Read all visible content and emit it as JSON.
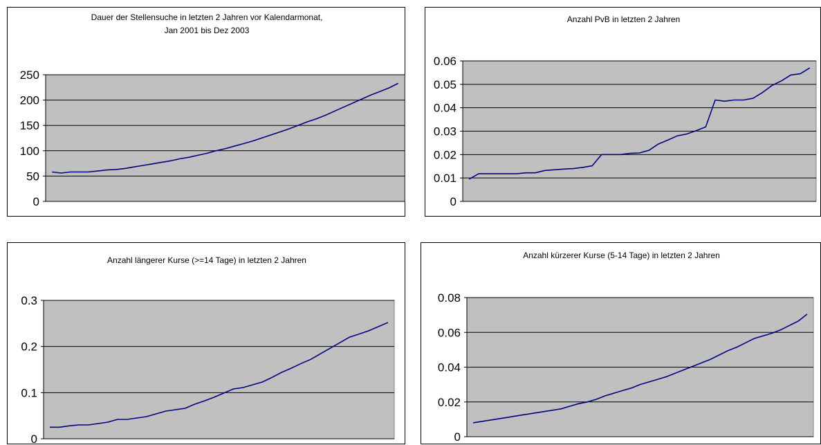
{
  "chart_data": [
    {
      "type": "line",
      "title": "Dauer der Stellensuche in letzten 2 Jahren vor Kalendarmonat,",
      "subtitle": "Jan 2001 bis Dez 2003",
      "xlabel": "",
      "ylabel": "",
      "ylim": [
        0,
        250
      ],
      "yticks": [
        0,
        50,
        100,
        150,
        200,
        250
      ],
      "grid": true,
      "plot_background": "#c0c0c0",
      "line_color": "#000080",
      "values": [
        58,
        56,
        58,
        58,
        58,
        60,
        62,
        63,
        65,
        68,
        71,
        74,
        77,
        80,
        84,
        87,
        91,
        95,
        100,
        104,
        109,
        114,
        119,
        125,
        131,
        137,
        143,
        150,
        157,
        163,
        170,
        178,
        186,
        194,
        202,
        210,
        217,
        224,
        233
      ]
    },
    {
      "type": "line",
      "title": "Anzahl PvB in letzten 2 Jahren",
      "subtitle": "",
      "xlabel": "",
      "ylabel": "",
      "ylim": [
        0,
        0.06
      ],
      "yticks": [
        0,
        0.01,
        0.02,
        0.03,
        0.04,
        0.05,
        0.06
      ],
      "grid": true,
      "plot_background": "#c0c0c0",
      "line_color": "#000080",
      "values": [
        0.0095,
        0.0118,
        0.0118,
        0.0118,
        0.0118,
        0.0118,
        0.0122,
        0.0122,
        0.0132,
        0.0135,
        0.0138,
        0.014,
        0.0145,
        0.0152,
        0.02,
        0.02,
        0.02,
        0.0205,
        0.0207,
        0.0218,
        0.0245,
        0.0262,
        0.028,
        0.0288,
        0.0302,
        0.0318,
        0.0433,
        0.0428,
        0.0433,
        0.0433,
        0.044,
        0.0465,
        0.0495,
        0.0515,
        0.054,
        0.0545,
        0.057
      ]
    },
    {
      "type": "line",
      "title": "Anzahl längerer Kurse (>=14 Tage) in letzten 2 Jahren",
      "subtitle": "",
      "xlabel": "",
      "ylabel": "",
      "ylim": [
        0,
        0.3
      ],
      "yticks": [
        0,
        0.1,
        0.2,
        0.3
      ],
      "grid": true,
      "plot_background": "#c0c0c0",
      "line_color": "#000080",
      "values": [
        0.025,
        0.025,
        0.028,
        0.03,
        0.03,
        0.033,
        0.036,
        0.042,
        0.042,
        0.045,
        0.048,
        0.054,
        0.06,
        0.063,
        0.066,
        0.075,
        0.082,
        0.09,
        0.099,
        0.108,
        0.111,
        0.117,
        0.123,
        0.133,
        0.144,
        0.153,
        0.163,
        0.172,
        0.184,
        0.196,
        0.208,
        0.22,
        0.227,
        0.234,
        0.243,
        0.252
      ]
    },
    {
      "type": "line",
      "title": "Anzahl kürzerer Kurse (5-14 Tage) in letzten 2 Jahren",
      "subtitle": "",
      "xlabel": "",
      "ylabel": "",
      "ylim": [
        0,
        0.08
      ],
      "yticks": [
        0,
        0.02,
        0.04,
        0.06,
        0.08
      ],
      "grid": true,
      "plot_background": "#c0c0c0",
      "line_color": "#000080",
      "values": [
        0.008,
        0.0088,
        0.0096,
        0.0104,
        0.0112,
        0.012,
        0.0128,
        0.0136,
        0.0144,
        0.0152,
        0.016,
        0.0175,
        0.019,
        0.02,
        0.0215,
        0.0235,
        0.025,
        0.0265,
        0.028,
        0.03,
        0.0315,
        0.033,
        0.0345,
        0.0365,
        0.0385,
        0.0405,
        0.0425,
        0.0445,
        0.047,
        0.0495,
        0.0515,
        0.054,
        0.0565,
        0.058,
        0.0595,
        0.0615,
        0.064,
        0.0665,
        0.0705
      ]
    }
  ]
}
